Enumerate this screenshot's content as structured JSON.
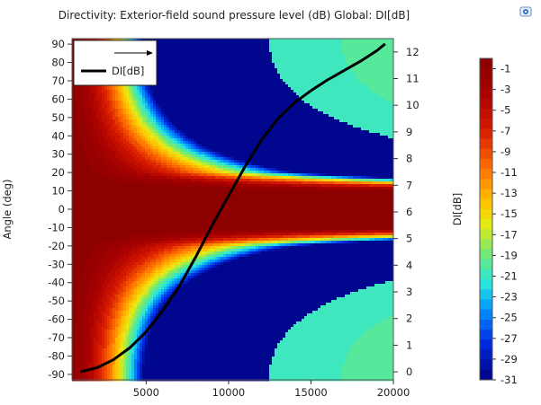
{
  "chart_data": {
    "type": "heatmap",
    "title": "Directivity: Exterior-field sound pressure level (dB)  Global: DI[dB]",
    "xlabel": "",
    "ylabel": "Angle (deg)",
    "y2label": "DI[dB]",
    "xlim": [
      500,
      20000
    ],
    "ylim": [
      -93,
      93
    ],
    "y2lim": [
      -0.3,
      12.5
    ],
    "x_ticks": [
      5000,
      10000,
      15000,
      20000
    ],
    "y_ticks": [
      -90,
      -80,
      -70,
      -60,
      -50,
      -40,
      -30,
      -20,
      -10,
      0,
      10,
      20,
      30,
      40,
      50,
      60,
      70,
      80,
      90
    ],
    "y2_ticks": [
      0,
      1,
      2,
      3,
      4,
      5,
      6,
      7,
      8,
      9,
      10,
      11,
      12
    ],
    "colorbar": {
      "min": -31,
      "max": 0,
      "ticks": [
        -1,
        -3,
        -5,
        -7,
        -9,
        -11,
        -13,
        -15,
        -17,
        -19,
        -21,
        -23,
        -25,
        -27,
        -29,
        -31
      ],
      "colormap": "rainbow",
      "levels": 32
    },
    "legend": {
      "placement": "top-left",
      "entries": [
        {
          "label": "",
          "style": "arrow"
        },
        {
          "label": "DI[dB]",
          "style": "line",
          "color": "#000000"
        }
      ]
    },
    "series": [
      {
        "name": "DI[dB]",
        "axis": "right",
        "color": "#000000",
        "x": [
          1000,
          2000,
          3000,
          4000,
          5000,
          6000,
          7000,
          8000,
          9000,
          10000,
          11000,
          12000,
          13000,
          14000,
          15000,
          16000,
          17000,
          18000,
          19000,
          19500
        ],
        "y": [
          0.0,
          0.15,
          0.45,
          0.9,
          1.5,
          2.3,
          3.2,
          4.3,
          5.5,
          6.6,
          7.7,
          8.7,
          9.5,
          10.1,
          10.55,
          10.95,
          11.3,
          11.65,
          12.05,
          12.3
        ]
      }
    ]
  }
}
